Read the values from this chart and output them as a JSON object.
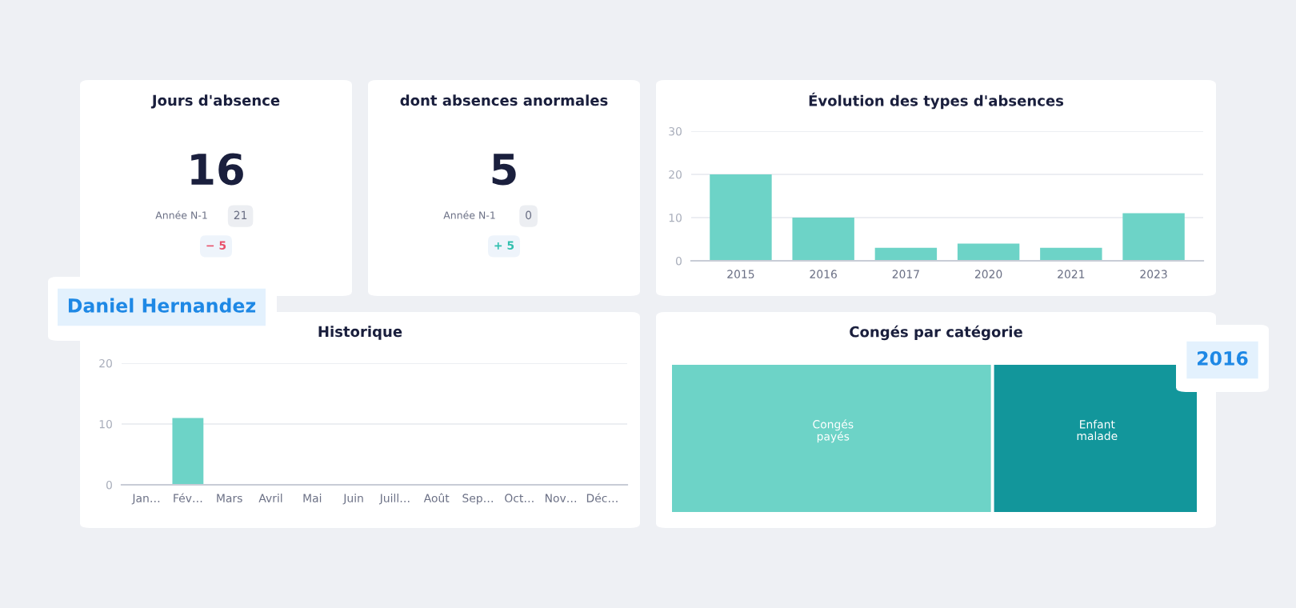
{
  "chart_data": [
    {
      "type": "other",
      "title": "Jours d'absence",
      "annotations": [
        "16",
        "Année N-1",
        "21",
        "− 5"
      ],
      "color": "#e8506a"
    },
    {
      "type": "other",
      "title": "dont absences anormales",
      "annotations": [
        "5",
        "Année N-1",
        "0",
        "+ 5"
      ],
      "color": "#2fbfae"
    },
    {
      "type": "bar",
      "title": "Évolution des types d'absences",
      "categories": [
        "2015",
        "2016",
        "2017",
        "2020",
        "2021",
        "2023"
      ],
      "values": [
        20,
        10,
        3,
        4,
        3,
        11
      ],
      "color": "#6dd3c7",
      "ylim": [
        0,
        30
      ],
      "yticks": [
        0,
        10,
        20,
        30
      ],
      "grid": "y"
    },
    {
      "type": "bar",
      "title": "Historique",
      "categories": [
        "Jan…",
        "Fév…",
        "Mars",
        "Avril",
        "Mai",
        "Juin",
        "Juill…",
        "Août",
        "Sep…",
        "Oct…",
        "Nov…",
        "Déc…"
      ],
      "values": [
        0,
        11,
        0,
        0,
        0,
        0,
        0,
        0,
        0,
        0,
        0,
        0
      ],
      "color": "#6dd3c7",
      "ylim": [
        0,
        20
      ],
      "yticks": [
        0,
        10,
        20
      ],
      "grid": "y",
      "annotations": [
        "Daniel Hernandez"
      ]
    },
    {
      "type": "other",
      "title": "Congés par catégorie",
      "categories": [
        "Congés\npayés",
        "Enfant\nmalade"
      ],
      "colors": [
        "#6dd3c7",
        "#12969b"
      ],
      "annotations": [
        "2016"
      ]
    }
  ]
}
